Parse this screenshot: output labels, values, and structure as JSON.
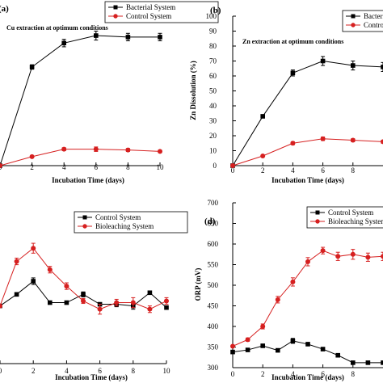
{
  "chart_data": [
    {
      "type": "line",
      "panel_label": "(a)",
      "annotation": "Cu extraction at optimum conditions",
      "xlabel": "Incubation Time (days)",
      "ylabel": "",
      "xlim": [
        0,
        10
      ],
      "ylim": [
        0,
        100
      ],
      "x_ticks": [
        "0",
        "2",
        "4",
        "6",
        "8",
        "10"
      ],
      "y_ticks": [],
      "legend_position": "top-right",
      "series": [
        {
          "name": "Bacterial System",
          "color": "#000000",
          "marker": "square",
          "x": [
            0,
            2,
            4,
            6,
            8,
            10
          ],
          "y": [
            0,
            66,
            82,
            87,
            86,
            86
          ],
          "err": [
            0,
            1.5,
            2.5,
            3,
            2.5,
            2.5
          ]
        },
        {
          "name": "Control System",
          "color": "#d62020",
          "marker": "circle",
          "x": [
            0,
            2,
            4,
            6,
            8,
            10
          ],
          "y": [
            0,
            6,
            11,
            11,
            10.5,
            9.5
          ],
          "err": [
            0,
            0.5,
            1,
            1.5,
            1,
            0.8
          ]
        }
      ]
    },
    {
      "type": "line",
      "panel_label": "(b)",
      "annotation": "Zn extraction at optimum conditions",
      "xlabel": "Incubation Time (days)",
      "ylabel": "Zn Dissolution (%)",
      "xlim": [
        0,
        10
      ],
      "ylim": [
        0,
        100
      ],
      "x_ticks": [
        "0",
        "2",
        "4",
        "6",
        "8"
      ],
      "y_ticks": [
        "0",
        "10",
        "20",
        "30",
        "40",
        "50",
        "60",
        "70",
        "80",
        "90",
        "100"
      ],
      "legend_position": "top-right",
      "series": [
        {
          "name": "Bacterial System",
          "color": "#000000",
          "marker": "square",
          "x": [
            0,
            2,
            4,
            6,
            8,
            10
          ],
          "y": [
            0,
            33,
            62,
            70,
            67,
            66
          ],
          "err": [
            0,
            1,
            2,
            3,
            3,
            3
          ]
        },
        {
          "name": "Control System",
          "color": "#d62020",
          "marker": "circle",
          "x": [
            0,
            2,
            4,
            6,
            8,
            10
          ],
          "y": [
            0,
            6.5,
            15,
            18,
            17,
            16
          ],
          "err": [
            0,
            0.5,
            1,
            1.2,
            1,
            1
          ]
        }
      ]
    },
    {
      "type": "line",
      "panel_label": "",
      "annotation": "",
      "xlabel": "Incubation Time (days)",
      "ylabel": "",
      "xlim": [
        0,
        10
      ],
      "ylim": [
        0,
        100
      ],
      "x_ticks": [
        "0",
        "2",
        "4",
        "6",
        "8",
        "10"
      ],
      "y_ticks": [],
      "legend_position": "top-right",
      "series": [
        {
          "name": "Control System",
          "color": "#000000",
          "marker": "square",
          "x": [
            0,
            1,
            2,
            3,
            4,
            5,
            6,
            7,
            8,
            9,
            10
          ],
          "y": [
            35,
            42,
            50,
            37,
            37,
            42,
            36,
            36,
            35,
            43,
            34
          ],
          "err": [
            0,
            1,
            2,
            1,
            1,
            1.5,
            1,
            1.5,
            2,
            1,
            1
          ]
        },
        {
          "name": "Bioleaching System",
          "color": "#d62020",
          "marker": "circle",
          "x": [
            0,
            1,
            2,
            3,
            4,
            5,
            6,
            7,
            8,
            9,
            10
          ],
          "y": [
            35,
            62,
            70,
            57,
            47,
            38,
            33,
            37,
            37,
            33,
            38
          ],
          "err": [
            0,
            2,
            3,
            2,
            2,
            1.5,
            3,
            2,
            3,
            2,
            2
          ]
        }
      ]
    },
    {
      "type": "line",
      "panel_label": "(d)",
      "annotation": "",
      "xlabel": "Incubation Time (days)",
      "ylabel": "ORP (mV)",
      "xlim": [
        0,
        10
      ],
      "ylim": [
        300,
        700
      ],
      "x_ticks": [
        "0",
        "2",
        "4",
        "6",
        "8"
      ],
      "y_ticks": [
        "300",
        "350",
        "400",
        "450",
        "500",
        "550",
        "600",
        "650",
        "700"
      ],
      "legend_position": "top-right",
      "series": [
        {
          "name": "Control System",
          "color": "#000000",
          "marker": "square",
          "x": [
            0,
            1,
            2,
            3,
            4,
            5,
            6,
            7,
            8,
            9,
            10
          ],
          "y": [
            338,
            343,
            353,
            342,
            365,
            357,
            345,
            330,
            312,
            312,
            312
          ],
          "err": [
            0,
            3,
            4,
            4,
            6,
            4,
            4,
            3,
            3,
            3,
            3
          ]
        },
        {
          "name": "Bioleaching System",
          "color": "#d62020",
          "marker": "circle",
          "x": [
            0,
            1,
            2,
            3,
            4,
            5,
            6,
            7,
            8,
            9,
            10
          ],
          "y": [
            352,
            368,
            400,
            465,
            508,
            557,
            584,
            570,
            575,
            568,
            570
          ],
          "err": [
            0,
            4,
            6,
            8,
            10,
            10,
            8,
            10,
            12,
            10,
            10
          ]
        }
      ]
    }
  ]
}
